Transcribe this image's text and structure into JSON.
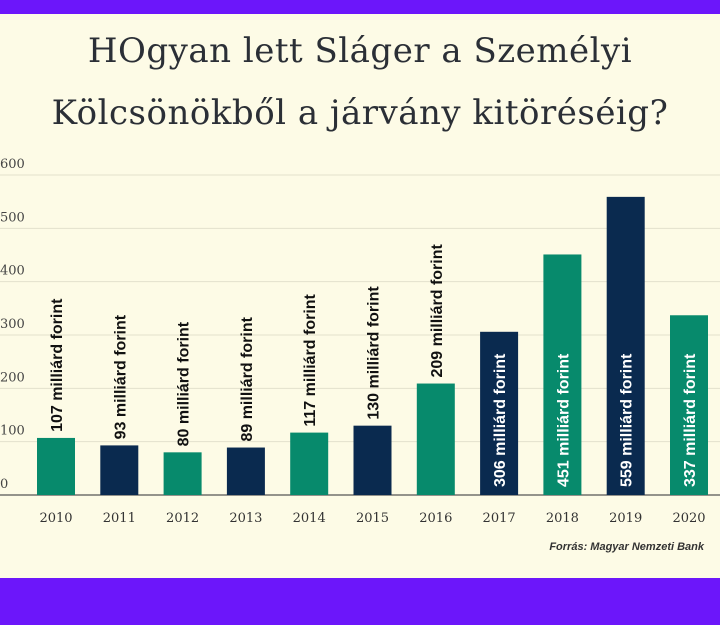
{
  "chart_data": {
    "type": "bar",
    "title": "HOgyan lett Sláger a Személyi Kölcsönökből a járvány kitöréséig?",
    "categories": [
      "2010",
      "2011",
      "2012",
      "2013",
      "2014",
      "2015",
      "2016",
      "2017",
      "2018",
      "2019",
      "2020"
    ],
    "values": [
      107,
      93,
      80,
      89,
      117,
      130,
      209,
      306,
      451,
      559,
      337
    ],
    "data_labels": [
      "107 milliárd forint",
      "93 milliárd forint",
      "80 milliárd forint",
      "89 milliárd forint",
      "117 milliárd forint",
      "130 milliárd forint",
      "209 milliárd forint",
      "306 milliárd forint",
      "451 milliárd forint",
      "559 milliárd forint",
      "337 milliárd forint"
    ],
    "bar_colors": [
      "#078a6c",
      "#0a2a4f",
      "#078a6c",
      "#0a2a4f",
      "#078a6c",
      "#0a2a4f",
      "#078a6c",
      "#0a2a4f",
      "#078a6c",
      "#0a2a4f",
      "#078a6c"
    ],
    "y_ticks": [
      "0",
      "100",
      "200",
      "300",
      "400",
      "500",
      "600"
    ],
    "ylim": [
      0,
      600
    ],
    "grid": true,
    "source": "Forrás: Magyar Nemzeti Bank"
  },
  "colors": {
    "accent": "#6c16fa",
    "green": "#078a6c",
    "navy": "#0a2a4f",
    "background": "#fdfbe6"
  }
}
